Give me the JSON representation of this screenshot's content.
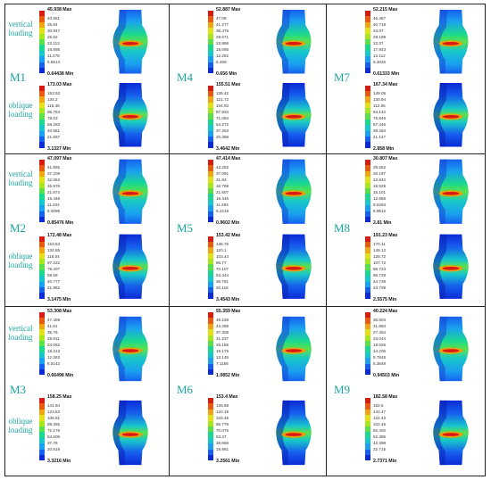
{
  "load_labels": {
    "vertical": [
      "vertical",
      "loading"
    ],
    "oblique": [
      "oblique",
      "loading"
    ]
  },
  "colors": [
    "#0b2bd6",
    "#1660ee",
    "#1aa0f0",
    "#17c7c9",
    "#1ad98f",
    "#5be04a",
    "#a8e61e",
    "#e2e21a",
    "#f0a512",
    "#e85a10",
    "#d81a10"
  ],
  "models": [
    {
      "id": "M1",
      "vertical": {
        "max": "45.938 Max",
        "values": [
          "40.861",
          "35.84",
          "30.947",
          "25.92",
          "22.113",
          "16.895",
          "11.278",
          "5.6614"
        ],
        "min": "0.64438 Min"
      },
      "oblique": {
        "max": "173.03 Max",
        "values": [
          "153.93",
          "134.2",
          "115.46",
          "96.754",
          "78.03",
          "58.283",
          "40.581",
          "21.857"
        ],
        "min": "3.1327 Min"
      }
    },
    {
      "id": "M4",
      "vertical": {
        "max": "52.887 Max",
        "values": [
          "47.08",
          "41.277",
          "35.476",
          "29.671",
          "23.868",
          "18.065",
          "12.262",
          "6.459"
        ],
        "min": "0.656 Min"
      },
      "oblique": {
        "max": "155.51 Max",
        "values": [
          "138.42",
          "121.72",
          "104.93",
          "87.834",
          "71.084",
          "54.272",
          "37.253",
          "20.359"
        ],
        "min": "3.4642 Min"
      }
    },
    {
      "id": "M7",
      "vertical": {
        "max": "52.215 Max",
        "values": [
          "46.467",
          "40.718",
          "34.97",
          "29.199",
          "23.37",
          "17.843",
          "12.112",
          "6.3025"
        ],
        "min": "0.61333 Min"
      },
      "oblique": {
        "max": "167.34 Max",
        "values": [
          "149.05",
          "130.94",
          "112.55",
          "94.142",
          "75.849",
          "57.446",
          "39.284",
          "21.147"
        ],
        "min": "2.858 Min"
      }
    },
    {
      "id": "M2",
      "vertical": {
        "max": "47.097 Max",
        "values": [
          "41.855",
          "37.208",
          "32.063",
          "26.976",
          "21.874",
          "16.448",
          "11.204",
          "6.0095"
        ],
        "min": "0.85476 Min"
      },
      "oblique": {
        "max": "172.48 Max",
        "values": [
          "153.63",
          "134.85",
          "116.04",
          "97.222",
          "78.407",
          "59.59",
          "40.777",
          "21.962"
        ],
        "min": "3.1475 Min"
      }
    },
    {
      "id": "M5",
      "vertical": {
        "max": "47.414 Max",
        "values": [
          "42.252",
          "37.091",
          "31.93",
          "26.768",
          "21.607",
          "16.445",
          "11.283",
          "6.1219"
        ],
        "min": "0.9602 Min"
      },
      "oblique": {
        "max": "153.42 Max",
        "values": [
          "136.76",
          "120.1",
          "103.44",
          "86.77",
          "70.107",
          "53.444",
          "36.781",
          "20.116"
        ],
        "min": "3.4543 Min"
      }
    },
    {
      "id": "M8",
      "vertical": {
        "max": "30.807 Max",
        "values": [
          "29.552",
          "26.197",
          "22.842",
          "19.526",
          "16.101",
          "12.856",
          "9.5283",
          "6.9512"
        ],
        "min": "2.81 Min"
      },
      "oblique": {
        "max": "191.23 Max",
        "values": [
          "170.11",
          "149.12",
          "128.72",
          "107.72",
          "86.723",
          "65.728",
          "44.738",
          "23.738"
        ],
        "min": "2.5575 Min"
      }
    },
    {
      "id": "M3",
      "vertical": {
        "max": "53.308 Max",
        "values": [
          "47.459",
          "41.61",
          "35.76",
          "29.911",
          "24.062",
          "18.213",
          "12.363",
          "6.5142"
        ],
        "min": "0.66498 Min"
      },
      "oblique": {
        "max": "158.25 Max",
        "values": [
          "141.84",
          "123.53",
          "106.81",
          "88.355",
          "72.176",
          "54.605",
          "37.75",
          "20.519"
        ],
        "min": "3.3216 Min"
      }
    },
    {
      "id": "M6",
      "vertical": {
        "max": "55.359 Max",
        "values": [
          "49.228",
          "43.298",
          "37.308",
          "31.237",
          "25.156",
          "19.176",
          "13.145",
          "7.1158"
        ],
        "min": "1.0852 Min"
      },
      "oblique": {
        "max": "153.4 Max",
        "values": [
          "136.68",
          "120.19",
          "103.48",
          "86.779",
          "70.075",
          "53.37",
          "36.666",
          "19.961"
        ],
        "min": "3.2561 Min"
      }
    },
    {
      "id": "M9",
      "vertical": {
        "max": "40.224 Max",
        "values": [
          "36.804",
          "31.884",
          "27.464",
          "23.044",
          "18.625",
          "14.205",
          "9.7848",
          "5.3649"
        ],
        "min": "0.94503 Min"
      },
      "oblique": {
        "max": "182.58 Max",
        "values": [
          "162.5",
          "142.47",
          "122.43",
          "102.45",
          "82.402",
          "62.385",
          "42.398",
          "22.715"
        ],
        "min": "2.7371 Min"
      }
    }
  ]
}
